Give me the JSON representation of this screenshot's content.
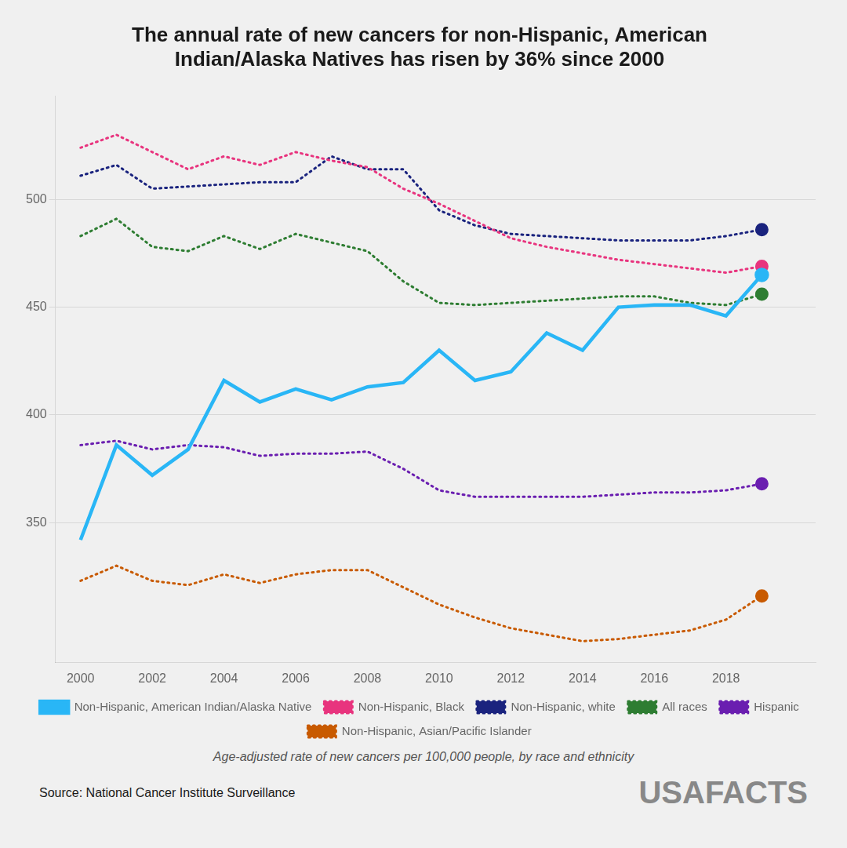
{
  "chart_data": {
    "type": "line",
    "title": [
      "The annual rate of new cancers for non-Hispanic, American",
      "Indian/Alaska Natives has risen by 36% since 2000"
    ],
    "annotations": [
      "Age-adjusted rate of new cancers per 100,000 people, by race and ethnicity",
      "Source: National Cancer Institute Surveillance",
      "USAFACTS"
    ],
    "x": [
      2000,
      2001,
      2002,
      2003,
      2004,
      2005,
      2006,
      2007,
      2008,
      2009,
      2010,
      2011,
      2012,
      2013,
      2014,
      2015,
      2016,
      2017,
      2018,
      2019
    ],
    "xlim": [
      1999.3,
      2020.5
    ],
    "xticks": [
      2000,
      2002,
      2004,
      2006,
      2008,
      2010,
      2012,
      2014,
      2016,
      2018
    ],
    "ylim": [
      285,
      548
    ],
    "yticks": [
      350,
      400,
      450,
      500
    ],
    "grid": "y",
    "legend": "bottom",
    "series": [
      {
        "name": "Non-Hispanic, Black",
        "color": "#e8347e",
        "line_style": "dotted",
        "values": [
          524,
          530,
          522,
          514,
          520,
          516,
          522,
          518,
          515,
          505,
          498,
          490,
          482,
          478,
          475,
          472,
          470,
          468,
          466,
          469
        ]
      },
      {
        "name": "Non-Hispanic, white",
        "color": "#1a237e",
        "line_style": "dotted",
        "values": [
          511,
          516,
          505,
          506,
          507,
          508,
          508,
          520,
          514,
          514,
          495,
          488,
          484,
          483,
          482,
          481,
          481,
          481,
          483,
          486
        ]
      },
      {
        "name": "Non-Hispanic, American Indian/Alaska Native",
        "color": "#29b6f6",
        "line_style": "solid",
        "values": [
          342,
          386,
          372,
          384,
          416,
          406,
          412,
          407,
          413,
          415,
          430,
          416,
          420,
          438,
          430,
          450,
          451,
          451,
          446,
          465
        ]
      },
      {
        "name": "All races",
        "color": "#2e7d32",
        "line_style": "dotted",
        "values": [
          483,
          491,
          478,
          476,
          483,
          477,
          484,
          480,
          476,
          462,
          452,
          451,
          452,
          453,
          454,
          455,
          455,
          452,
          451,
          456
        ]
      },
      {
        "name": "Hispanic",
        "color": "#6a1eb0",
        "line_style": "dotted",
        "values": [
          386,
          388,
          384,
          386,
          385,
          381,
          382,
          382,
          383,
          375,
          365,
          362,
          362,
          362,
          362,
          363,
          364,
          364,
          365,
          368
        ]
      },
      {
        "name": "Non-Hispanic, Asian/Pacific Islander",
        "color": "#c85a00",
        "line_style": "dotted",
        "values": [
          323,
          330,
          323,
          321,
          326,
          322,
          326,
          328,
          328,
          320,
          312,
          306,
          301,
          298,
          295,
          296,
          298,
          300,
          305,
          316
        ]
      }
    ]
  }
}
